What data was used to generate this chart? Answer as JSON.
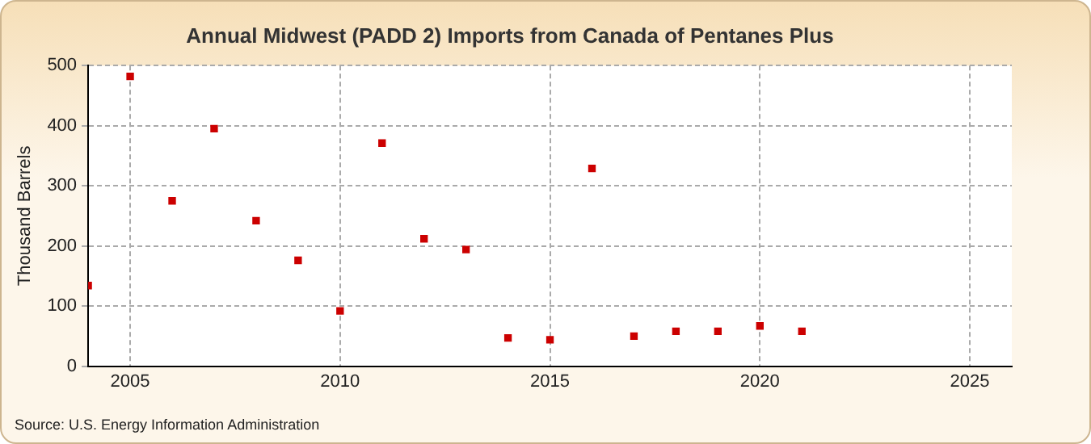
{
  "chart_data": {
    "type": "scatter",
    "title": "Annual Midwest (PADD 2) Imports from Canada of Pentanes Plus",
    "ylabel": "Thousand Barrels",
    "annotations": [
      "Source: U.S. Energy Information Administration"
    ],
    "x": [
      2004,
      2005,
      2006,
      2007,
      2008,
      2009,
      2010,
      2011,
      2012,
      2013,
      2014,
      2015,
      2016,
      2017,
      2018,
      2019,
      2020,
      2021
    ],
    "series": [
      {
        "color": "#cc0000",
        "values": [
          134,
          482,
          275,
          395,
          242,
          176,
          92,
          371,
          212,
          194,
          47,
          44,
          329,
          50,
          58,
          58,
          67,
          58
        ]
      }
    ],
    "xlim": [
      2004,
      2026
    ],
    "xticks": [
      2005,
      2010,
      2015,
      2020,
      2025
    ],
    "ylim": [
      0,
      500
    ],
    "yticks": [
      0,
      100,
      200,
      300,
      400,
      500
    ],
    "grid": true,
    "legend": false,
    "marker": "square"
  }
}
